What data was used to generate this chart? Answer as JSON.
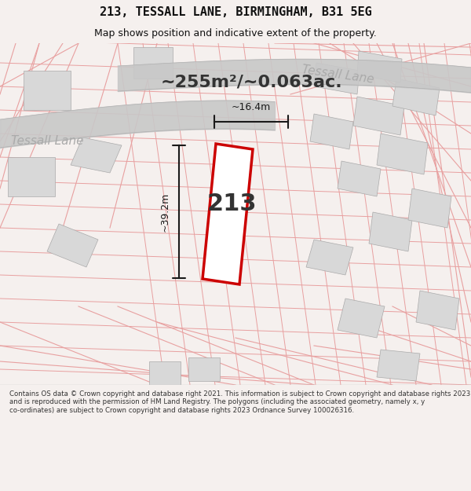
{
  "title": "213, TESSALL LANE, BIRMINGHAM, B31 5EG",
  "subtitle": "Map shows position and indicative extent of the property.",
  "area_text": "~255m²/~0.063ac.",
  "dim_width": "~16.4m",
  "dim_height": "~39.2m",
  "house_number": "213",
  "street_label_left": "Tessall Lane",
  "street_label_right": "Tessall Lane",
  "footer": "Contains OS data © Crown copyright and database right 2021. This information is subject to Crown copyright and database rights 2023 and is reproduced with the permission of HM Land Registry. The polygons (including the associated geometry, namely x, y co-ordinates) are subject to Crown copyright and database rights 2023 Ordnance Survey 100026316.",
  "bg_color": "#f5f0ee",
  "map_bg_color": "#ffffff",
  "plot_outline_color": "#cc0000",
  "plot_fill_color": "#ffffff",
  "road_color": "#c8c8c8",
  "building_fill": "#d8d8d8",
  "building_edge": "#aaaaaa",
  "grid_line_color": "#e8a0a0",
  "dim_line_color": "#1a1a1a",
  "text_color": "#333333",
  "street_text_color": "#aaaaaa",
  "title_color": "#111111",
  "footer_color": "#333333"
}
